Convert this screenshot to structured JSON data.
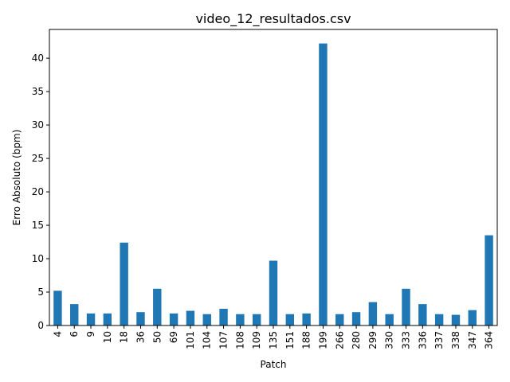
{
  "chart_data": {
    "type": "bar",
    "title": "video_12_resultados.csv",
    "xlabel": "Patch",
    "ylabel": "Erro Absoluto (bpm)",
    "categories": [
      "4",
      "6",
      "9",
      "10",
      "18",
      "36",
      "50",
      "69",
      "101",
      "104",
      "107",
      "108",
      "109",
      "135",
      "151",
      "188",
      "199",
      "266",
      "280",
      "299",
      "330",
      "333",
      "336",
      "337",
      "338",
      "347",
      "364"
    ],
    "values": [
      5.2,
      3.2,
      1.8,
      1.8,
      12.4,
      2.0,
      5.5,
      1.8,
      2.2,
      1.7,
      2.5,
      1.7,
      1.7,
      9.7,
      1.7,
      1.8,
      42.2,
      1.7,
      2.0,
      3.5,
      1.7,
      5.5,
      3.2,
      1.7,
      1.6,
      2.3,
      13.5
    ],
    "ylim": [
      0,
      44.3
    ],
    "yticks": [
      0,
      5,
      10,
      15,
      20,
      25,
      30,
      35,
      40
    ],
    "bar_color": "#1f77b4",
    "grid": false,
    "legend": false
  }
}
